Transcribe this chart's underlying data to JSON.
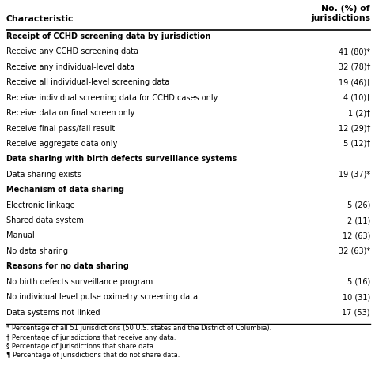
{
  "col_header_left": "Characteristic",
  "col_header_right": "No. (%) of\njurisdictions",
  "rows": [
    {
      "text": "Receipt of CCHD screening data by jurisdiction",
      "value": "",
      "bold": true
    },
    {
      "text": "Receive any CCHD screening data",
      "value": "41 (80)*",
      "bold": false
    },
    {
      "text": "Receive any individual-level data",
      "value": "32 (78)†",
      "bold": false
    },
    {
      "text": "Receive all individual-level screening data",
      "value": "19 (46)†",
      "bold": false
    },
    {
      "text": "Receive individual screening data for CCHD cases only",
      "value": "4 (10)†",
      "bold": false
    },
    {
      "text": "Receive data on final screen only",
      "value": "1 (2)†",
      "bold": false
    },
    {
      "text": "Receive final pass/fail result",
      "value": "12 (29)†",
      "bold": false
    },
    {
      "text": "Receive aggregate data only",
      "value": "5 (12)†",
      "bold": false
    },
    {
      "text": "Data sharing with birth defects surveillance systems",
      "value": "",
      "bold": true
    },
    {
      "text": "Data sharing exists",
      "value": "19 (37)*",
      "bold": false
    },
    {
      "text": "Mechanism of data sharing",
      "value": "",
      "bold": true
    },
    {
      "text": "Electronic linkage",
      "value": "5 (26)",
      "bold": false
    },
    {
      "text": "Shared data system",
      "value": "2 (11)",
      "bold": false
    },
    {
      "text": "Manual",
      "value": "12 (63)",
      "bold": false
    },
    {
      "text": "No data sharing",
      "value": "32 (63)*",
      "bold": false
    },
    {
      "text": "Reasons for no data sharing",
      "value": "",
      "bold": true
    },
    {
      "text": "No birth defects surveillance program",
      "value": "5 (16)",
      "bold": false
    },
    {
      "text": "No individual level pulse oximetry screening data",
      "value": "10 (31)",
      "bold": false
    },
    {
      "text": "Data systems not linked",
      "value": "17 (53)",
      "bold": false
    }
  ],
  "footnotes": [
    "* Percentage of all 51 jurisdictions (50 U.S. states and the District of Columbia).",
    "† Percentage of jurisdictions that receive any data.",
    "§ Percentage of jurisdictions that share data.",
    "¶ Percentage of jurisdictions that do not share data."
  ],
  "bg_color": "#ffffff",
  "text_color": "#000000",
  "line_color": "#000000",
  "header_fs": 7.8,
  "row_fs": 7.0,
  "footnote_fs": 6.0,
  "fig_width": 4.74,
  "fig_height": 4.62,
  "dpi": 100
}
